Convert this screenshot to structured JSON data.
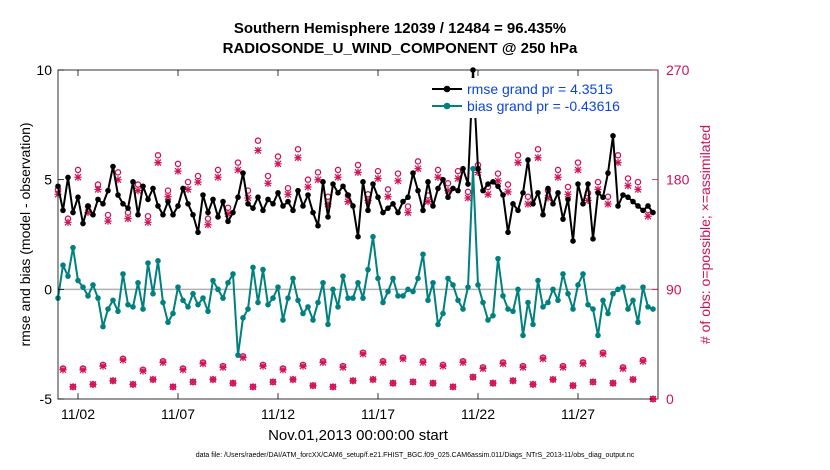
{
  "chart_data": {
    "type": "line",
    "title": "Southern Hemisphere 12039 / 12484 = 96.435%",
    "subtitle": "RADIOSONDE_U_WIND_COMPONENT @ 250 hPa",
    "xlabel": "Nov.01,2013 00:00:00 start",
    "ylabel": "rmse and bias (model - observation)",
    "y2label": "# of obs: o=possible; ×=assimilated",
    "footer": "data file: /Users/raeder/DAI/ATM_forcXX/CAM6_setup/f.e21.FHIST_BGC.f09_025.CAM6assim.011/Diags_NTrS_2013-11/obs_diag_output.nc",
    "xlim": [
      0.5,
      30.5
    ],
    "ylim": [
      -5,
      10
    ],
    "y2lim": [
      0,
      270
    ],
    "x_ticks": [
      1.5,
      6.5,
      11.5,
      16.5,
      21.5,
      26.5
    ],
    "x_tick_labels": [
      "11/02",
      "11/07",
      "11/12",
      "11/17",
      "11/22",
      "11/27"
    ],
    "y_ticks": [
      -5,
      0,
      5,
      10
    ],
    "y_tick_labels": [
      "-5",
      "0",
      "5",
      "10"
    ],
    "y2_ticks": [
      0,
      90,
      180,
      270
    ],
    "y2_tick_labels": [
      "0",
      "90",
      "180",
      "270"
    ],
    "legend_position": "top-right",
    "colors": {
      "rmse": "#000000",
      "bias": "#00807f",
      "counts": "#cf1259",
      "legend_text": "#0a45e0",
      "zero_line": "#b0b0b0"
    },
    "series": [
      {
        "name": "rmse grand pr = 4.3515",
        "color": "#000000",
        "x": [
          0.5,
          0.75,
          1.0,
          1.25,
          1.5,
          1.75,
          2.0,
          2.25,
          2.5,
          2.75,
          3.0,
          3.25,
          3.5,
          3.75,
          4.0,
          4.25,
          4.5,
          4.75,
          5.0,
          5.25,
          5.5,
          5.75,
          6.0,
          6.25,
          6.5,
          6.75,
          7.0,
          7.25,
          7.5,
          7.75,
          8.0,
          8.25,
          8.5,
          8.75,
          9.0,
          9.25,
          9.5,
          9.75,
          10.0,
          10.25,
          10.5,
          10.75,
          11.0,
          11.25,
          11.5,
          11.75,
          12.0,
          12.25,
          12.5,
          12.75,
          13.0,
          13.25,
          13.5,
          13.75,
          14.0,
          14.25,
          14.5,
          14.75,
          15.0,
          15.25,
          15.5,
          15.75,
          16.0,
          16.25,
          16.5,
          16.75,
          17.0,
          17.25,
          17.5,
          17.75,
          18.0,
          18.25,
          18.5,
          18.75,
          19.0,
          19.25,
          19.5,
          19.75,
          20.0,
          20.25,
          20.5,
          20.75,
          21.0,
          21.25,
          21.5,
          21.75,
          22.0,
          22.25,
          22.5,
          22.75,
          23.0,
          23.25,
          23.5,
          23.75,
          24.0,
          24.25,
          24.5,
          24.75,
          25.0,
          25.25,
          25.5,
          25.75,
          26.0,
          26.25,
          26.5,
          26.75,
          27.0,
          27.25,
          27.5,
          27.75,
          28.0,
          28.25,
          28.5,
          28.75,
          29.0,
          29.25,
          29.5,
          29.75,
          30.0,
          30.25
        ],
        "values": [
          4.7,
          3.6,
          5.1,
          3.5,
          4.2,
          3.0,
          3.8,
          3.4,
          4.1,
          3.9,
          4.5,
          5.6,
          4.3,
          3.9,
          3.7,
          4.9,
          3.4,
          4.7,
          4.1,
          4.6,
          3.8,
          3.4,
          4.0,
          3.4,
          3.8,
          4.6,
          3.9,
          3.4,
          2.6,
          4.3,
          3.5,
          4.1,
          3.3,
          4.0,
          3.1,
          3.5,
          4.2,
          5.3,
          3.9,
          3.7,
          4.2,
          3.6,
          4.1,
          3.9,
          4.4,
          3.8,
          4.0,
          3.6,
          4.5,
          3.8,
          4.3,
          3.5,
          2.9,
          4.9,
          3.3,
          4.8,
          4.4,
          4.7,
          4.3,
          3.8,
          2.4,
          4.9,
          3.6,
          4.8,
          4.2,
          3.5,
          3.7,
          3.9,
          3.5,
          4.0,
          4.2,
          5.3,
          4.5,
          3.6,
          4.9,
          3.8,
          4.6,
          5.0,
          4.2,
          4.6,
          4.5,
          5.5,
          4.8,
          10.0,
          5.5,
          4.5,
          4.8,
          4.9,
          4.7,
          4.3,
          2.6,
          3.9,
          3.6,
          4.4,
          5.9,
          3.9,
          4.4,
          3.4,
          4.6,
          3.9,
          4.4,
          3.2,
          4.1,
          2.2,
          4.8,
          3.9,
          4.8,
          2.3,
          4.4,
          4.2,
          5.3,
          7.0,
          3.8,
          4.3,
          4.2,
          4.0,
          3.8,
          3.6,
          3.8,
          3.5
        ]
      },
      {
        "name": "bias grand pr = -0.43616",
        "color": "#00807f",
        "x": [
          0.5,
          0.75,
          1.0,
          1.25,
          1.5,
          1.75,
          2.0,
          2.25,
          2.5,
          2.75,
          3.0,
          3.25,
          3.5,
          3.75,
          4.0,
          4.25,
          4.5,
          4.75,
          5.0,
          5.25,
          5.5,
          5.75,
          6.0,
          6.25,
          6.5,
          6.75,
          7.0,
          7.25,
          7.5,
          7.75,
          8.0,
          8.25,
          8.5,
          8.75,
          9.0,
          9.25,
          9.5,
          9.75,
          10.0,
          10.25,
          10.5,
          10.75,
          11.0,
          11.25,
          11.5,
          11.75,
          12.0,
          12.25,
          12.5,
          12.75,
          13.0,
          13.25,
          13.5,
          13.75,
          14.0,
          14.25,
          14.5,
          14.75,
          15.0,
          15.25,
          15.5,
          15.75,
          16.0,
          16.25,
          16.5,
          16.75,
          17.0,
          17.25,
          17.5,
          17.75,
          18.0,
          18.25,
          18.5,
          18.75,
          19.0,
          19.25,
          19.5,
          19.75,
          20.0,
          20.25,
          20.5,
          20.75,
          21.0,
          21.25,
          21.5,
          21.75,
          22.0,
          22.25,
          22.5,
          22.75,
          23.0,
          23.25,
          23.5,
          23.75,
          24.0,
          24.25,
          24.5,
          24.75,
          25.0,
          25.25,
          25.5,
          25.75,
          26.0,
          26.25,
          26.5,
          26.75,
          27.0,
          27.25,
          27.5,
          27.75,
          28.0,
          28.25,
          28.5,
          28.75,
          29.0,
          29.25,
          29.5,
          29.75,
          30.0,
          30.25
        ],
        "values": [
          -0.4,
          1.1,
          0.6,
          1.9,
          0.4,
          0.1,
          -0.3,
          0.2,
          -0.4,
          -1.7,
          -0.9,
          -0.5,
          -1.0,
          0.7,
          -0.7,
          -0.8,
          0.3,
          -0.9,
          1.2,
          -0.2,
          1.3,
          -0.6,
          -1.5,
          -1.1,
          0.1,
          -0.5,
          -0.8,
          -0.2,
          -0.7,
          -0.4,
          -1.0,
          0.4,
          0.0,
          -0.4,
          0.3,
          0.7,
          -3.0,
          -1.3,
          -0.9,
          1.0,
          -0.6,
          0.9,
          -0.7,
          -0.4,
          0.1,
          -1.4,
          -0.4,
          0.5,
          -0.5,
          -1.1,
          -0.8,
          -1.4,
          -0.6,
          0.3,
          -1.6,
          0.0,
          -0.8,
          0.6,
          -0.4,
          -0.4,
          0.3,
          -0.4,
          0.9,
          2.4,
          0.5,
          -0.6,
          -0.1,
          0.5,
          -0.3,
          -0.3,
          0.0,
          -0.1,
          0.5,
          1.6,
          -0.5,
          0.3,
          -1.6,
          -1.1,
          0.5,
          0.2,
          -0.5,
          -0.9,
          0.1,
          5.5,
          0.2,
          -0.6,
          -1.4,
          -1.2,
          1.4,
          -0.3,
          -0.9,
          -1.0,
          0.0,
          -2.1,
          -0.6,
          -1.6,
          0.4,
          -0.8,
          -0.6,
          0.0,
          -0.5,
          0.7,
          -0.2,
          -0.9,
          0.2,
          0.7,
          -0.7,
          -0.9,
          -2.1,
          -0.5,
          -1.1,
          -0.2,
          0.0,
          0.1,
          -0.9,
          -0.5,
          -1.5,
          0.1,
          -0.8,
          -0.9
        ]
      },
      {
        "name": "possible observations (o)",
        "axis": "right",
        "color": "#cf1259",
        "marker": "o",
        "x": [
          0.5,
          0.75,
          1.0,
          1.25,
          1.5,
          1.75,
          2.0,
          2.25,
          2.5,
          2.75,
          3.0,
          3.25,
          3.5,
          3.75,
          4.0,
          4.25,
          4.5,
          4.75,
          5.0,
          5.25,
          5.5,
          5.75,
          6.0,
          6.25,
          6.5,
          6.75,
          7.0,
          7.25,
          7.5,
          7.75,
          8.0,
          8.25,
          8.5,
          8.75,
          9.0,
          9.25,
          9.5,
          9.75,
          10.0,
          10.25,
          10.5,
          10.75,
          11.0,
          11.25,
          11.5,
          11.75,
          12.0,
          12.25,
          12.5,
          12.75,
          13.0,
          13.25,
          13.5,
          13.75,
          14.0,
          14.25,
          14.5,
          14.75,
          15.0,
          15.25,
          15.5,
          15.75,
          16.0,
          16.25,
          16.5,
          16.75,
          17.0,
          17.25,
          17.5,
          17.75,
          18.0,
          18.25,
          18.5,
          18.75,
          19.0,
          19.25,
          19.5,
          19.75,
          20.0,
          20.25,
          20.5,
          20.75,
          21.0,
          21.25,
          21.5,
          21.75,
          22.0,
          22.25,
          22.5,
          22.75,
          23.0,
          23.25,
          23.5,
          23.75,
          24.0,
          24.25,
          24.5,
          24.75,
          25.0,
          25.25,
          25.5,
          25.75,
          26.0,
          26.25,
          26.5,
          26.75,
          27.0,
          27.25,
          27.5,
          27.75,
          28.0,
          28.25,
          28.5,
          28.75,
          29.0,
          29.25,
          29.5,
          29.75,
          30.0,
          30.25
        ],
        "values": [
          172,
          25,
          148,
          10,
          188,
          25,
          158,
          12,
          176,
          28,
          151,
          15,
          186,
          33,
          153,
          12,
          176,
          24,
          150,
          16,
          200,
          31,
          171,
          10,
          193,
          25,
          178,
          14,
          183,
          30,
          148,
          16,
          188,
          27,
          157,
          13,
          194,
          35,
          171,
          10,
          212,
          28,
          183,
          14,
          199,
          25,
          173,
          16,
          205,
          28,
          180,
          11,
          186,
          31,
          166,
          10,
          188,
          27,
          167,
          15,
          192,
          38,
          168,
          16,
          187,
          31,
          172,
          13,
          185,
          34,
          158,
          14,
          195,
          31,
          167,
          13,
          188,
          28,
          177,
          10,
          187,
          31,
          170,
          18,
          192,
          26,
          174,
          13,
          185,
          30,
          176,
          15,
          200,
          27,
          166,
          12,
          205,
          34,
          171,
          16,
          188,
          27,
          174,
          11,
          194,
          30,
          169,
          14,
          178,
          38,
          166,
          13,
          200,
          26,
          181,
          16,
          178,
          32,
          155,
          0
        ]
      },
      {
        "name": "assimilated observations (×)",
        "axis": "right",
        "color": "#cf1259",
        "marker": "x",
        "x": [
          0.5,
          0.75,
          1.0,
          1.25,
          1.5,
          1.75,
          2.0,
          2.25,
          2.5,
          2.75,
          3.0,
          3.25,
          3.5,
          3.75,
          4.0,
          4.25,
          4.5,
          4.75,
          5.0,
          5.25,
          5.5,
          5.75,
          6.0,
          6.25,
          6.5,
          6.75,
          7.0,
          7.25,
          7.5,
          7.75,
          8.0,
          8.25,
          8.5,
          8.75,
          9.0,
          9.25,
          9.5,
          9.75,
          10.0,
          10.25,
          10.5,
          10.75,
          11.0,
          11.25,
          11.5,
          11.75,
          12.0,
          12.25,
          12.5,
          12.75,
          13.0,
          13.25,
          13.5,
          13.75,
          14.0,
          14.25,
          14.5,
          14.75,
          15.0,
          15.25,
          15.5,
          15.75,
          16.0,
          16.25,
          16.5,
          16.75,
          17.0,
          17.25,
          17.5,
          17.75,
          18.0,
          18.25,
          18.5,
          18.75,
          19.0,
          19.25,
          19.5,
          19.75,
          20.0,
          20.25,
          20.5,
          20.75,
          21.0,
          21.25,
          21.5,
          21.75,
          22.0,
          22.25,
          22.5,
          22.75,
          23.0,
          23.25,
          23.5,
          23.75,
          24.0,
          24.25,
          24.5,
          24.75,
          25.0,
          25.25,
          25.5,
          25.75,
          26.0,
          26.25,
          26.5,
          26.75,
          27.0,
          27.25,
          27.5,
          27.75,
          28.0,
          28.25,
          28.5,
          28.75,
          29.0,
          29.25,
          29.5,
          29.75,
          30.0,
          30.25
        ],
        "values": [
          168,
          24,
          145,
          10,
          182,
          24,
          153,
          12,
          172,
          27,
          146,
          15,
          180,
          32,
          148,
          12,
          171,
          23,
          145,
          16,
          194,
          30,
          166,
          10,
          187,
          24,
          172,
          14,
          178,
          29,
          143,
          16,
          182,
          26,
          152,
          13,
          188,
          34,
          165,
          10,
          204,
          27,
          177,
          14,
          193,
          24,
          168,
          16,
          198,
          27,
          174,
          11,
          180,
          30,
          160,
          10,
          182,
          26,
          162,
          15,
          186,
          37,
          163,
          16,
          181,
          30,
          166,
          13,
          179,
          33,
          153,
          14,
          189,
          30,
          162,
          13,
          182,
          27,
          171,
          10,
          181,
          30,
          165,
          18,
          186,
          25,
          168,
          13,
          179,
          29,
          170,
          15,
          194,
          26,
          160,
          12,
          198,
          33,
          165,
          16,
          182,
          26,
          168,
          11,
          188,
          29,
          163,
          14,
          172,
          37,
          160,
          13,
          194,
          25,
          175,
          16,
          172,
          31,
          150,
          0
        ]
      }
    ]
  }
}
